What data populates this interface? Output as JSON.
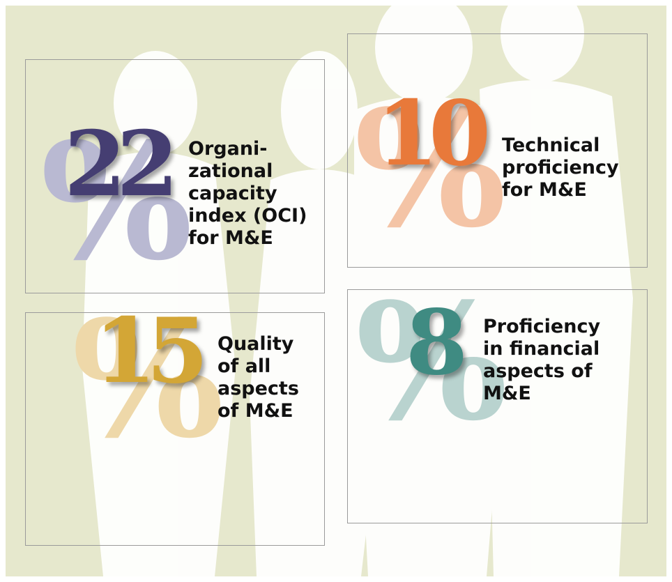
{
  "percent_sign": "%",
  "stats": [
    {
      "value": 22,
      "label_lines": [
        "Organi-",
        "zational",
        "capacity",
        "index (OCI)",
        "for M&E"
      ],
      "color": "#453e72",
      "percent_color": "#b9b9d2"
    },
    {
      "value": 10,
      "label_lines": [
        "Technical",
        "proficiency",
        "for M&E"
      ],
      "color": "#e8793a",
      "percent_color": "#f4c4a6"
    },
    {
      "value": 15,
      "label_lines": [
        "Quality",
        "of all",
        "aspects",
        "of M&E"
      ],
      "color": "#d3a636",
      "percent_color": "#eed8a9"
    },
    {
      "value": 8,
      "label_lines": [
        "Proficiency",
        "in financial",
        "aspects of",
        "M&E"
      ],
      "color": "#3f8b82",
      "percent_color": "#b9d3cf"
    }
  ]
}
